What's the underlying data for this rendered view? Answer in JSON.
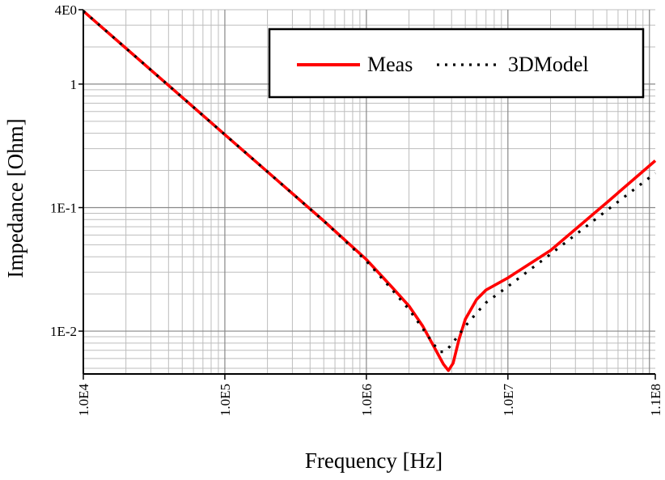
{
  "chart_data": {
    "type": "line",
    "title": "",
    "xlabel": "Frequency [Hz]",
    "ylabel": "Impedance [Ohm]",
    "x_scale": "log",
    "y_scale": "log",
    "xlim": [
      10000,
      110000000
    ],
    "ylim": [
      0.0045,
      4
    ],
    "grid": true,
    "legend_position": "top-right",
    "x_ticks": [
      {
        "value": 10000,
        "label": "1.0E4"
      },
      {
        "value": 100000,
        "label": "1.0E5"
      },
      {
        "value": 1000000,
        "label": "1.0E6"
      },
      {
        "value": 10000000,
        "label": "1.0E7"
      },
      {
        "value": 110000000,
        "label": "1.1E8"
      }
    ],
    "y_ticks": [
      {
        "value": 4,
        "label": "4E0"
      },
      {
        "value": 1,
        "label": "1"
      },
      {
        "value": 0.1,
        "label": "1E-1"
      },
      {
        "value": 0.01,
        "label": "1E-2"
      }
    ],
    "series": [
      {
        "name": "Meas",
        "color": "#ff0000",
        "style": "solid",
        "points": [
          [
            10000,
            3.9
          ],
          [
            20000,
            1.95
          ],
          [
            50000,
            0.78
          ],
          [
            100000,
            0.39
          ],
          [
            200000,
            0.195
          ],
          [
            500000,
            0.078
          ],
          [
            1000000,
            0.038
          ],
          [
            1500000,
            0.023
          ],
          [
            2000000,
            0.016
          ],
          [
            2500000,
            0.011
          ],
          [
            3000000,
            0.0075
          ],
          [
            3500000,
            0.0054
          ],
          [
            3800000,
            0.0048
          ],
          [
            4100000,
            0.0055
          ],
          [
            4500000,
            0.0085
          ],
          [
            5000000,
            0.0125
          ],
          [
            6000000,
            0.018
          ],
          [
            7000000,
            0.0215
          ],
          [
            10000000,
            0.027
          ],
          [
            20000000,
            0.045
          ],
          [
            50000000,
            0.11
          ],
          [
            110000000,
            0.24
          ]
        ]
      },
      {
        "name": "3DModel",
        "color": "#000000",
        "style": "dotted",
        "points": [
          [
            10000,
            3.9
          ],
          [
            20000,
            1.95
          ],
          [
            50000,
            0.78
          ],
          [
            100000,
            0.39
          ],
          [
            200000,
            0.195
          ],
          [
            500000,
            0.078
          ],
          [
            1000000,
            0.037
          ],
          [
            1500000,
            0.022
          ],
          [
            2000000,
            0.015
          ],
          [
            2500000,
            0.0105
          ],
          [
            3000000,
            0.0078
          ],
          [
            3300000,
            0.0068
          ],
          [
            3600000,
            0.0068
          ],
          [
            4000000,
            0.0078
          ],
          [
            5000000,
            0.011
          ],
          [
            6000000,
            0.014
          ],
          [
            7000000,
            0.017
          ],
          [
            10000000,
            0.023
          ],
          [
            20000000,
            0.042
          ],
          [
            50000000,
            0.095
          ],
          [
            110000000,
            0.19
          ]
        ]
      }
    ]
  }
}
